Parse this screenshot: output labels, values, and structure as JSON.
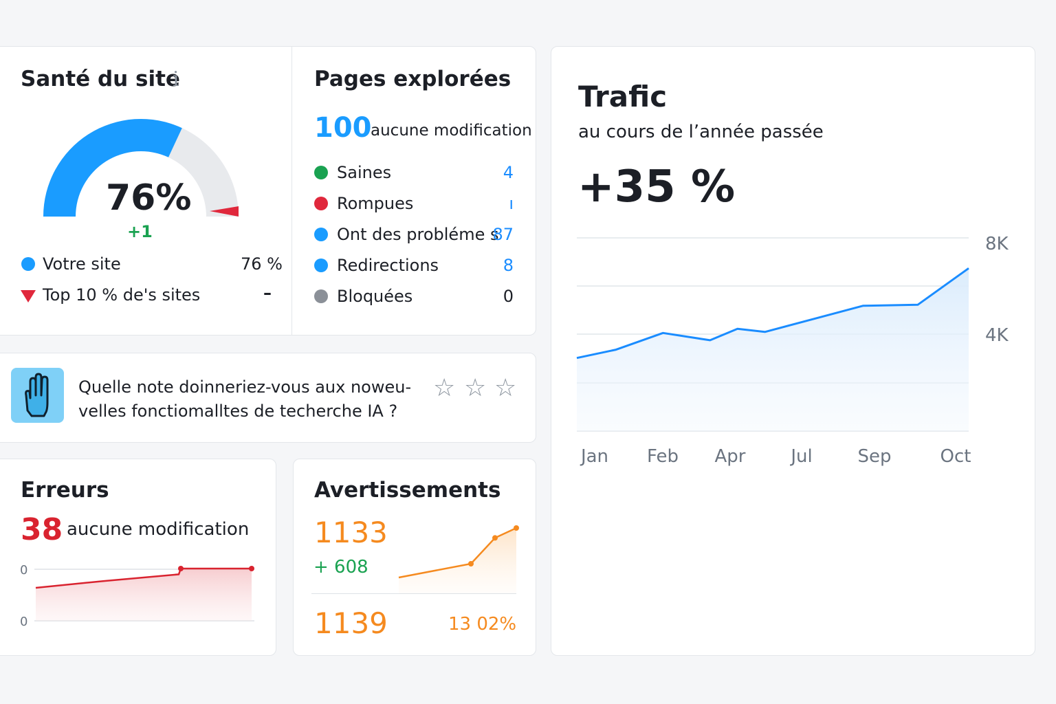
{
  "site_health": {
    "title": "Santé du site",
    "info_icon": "i",
    "percent_text": "76%",
    "percent_value": 76,
    "delta": "+1",
    "legend": [
      {
        "label": "Votre site",
        "value": "76 %",
        "color": "#1a9cff"
      },
      {
        "label": "Top 10 % de's sites",
        "value": "–",
        "color": "#e0283c"
      }
    ]
  },
  "pages": {
    "title": "Pages explorées",
    "count": "100",
    "change": "aucune modification",
    "rows": [
      {
        "label": "Saines",
        "value": "4",
        "color": "#1aa251"
      },
      {
        "label": "Rompues",
        "value": "ı",
        "color": "#e0283c"
      },
      {
        "label": "Ont des probléme s",
        "value": "87",
        "color": "#1a9cff"
      },
      {
        "label": "Redirections",
        "value": "8",
        "color": "#1a9cff"
      },
      {
        "label": "Bloquées",
        "value": "0",
        "color": "#8b9098",
        "value_color": "#1c1f26"
      }
    ]
  },
  "feedback": {
    "line1": "Quelle note doinneriez-vous aux noweu-",
    "line2": "velles fonctiomalltes de techerche IA ?",
    "icon": "hand-icon",
    "stars": 3
  },
  "errors": {
    "title": "Erreurs",
    "count": "38",
    "change": "aucune modification",
    "y_ticks": [
      "0",
      "0"
    ],
    "color": "#d9232f",
    "values": [
      0.0,
      0.35,
      0.7,
      1.0,
      1.0
    ]
  },
  "warnings": {
    "title": "Avertissements",
    "count": "1133",
    "delta": "+ 608",
    "count2": "113",
    "count2_suffix": "9",
    "percent": "13 02%",
    "color": "#f58a1f",
    "values": [
      0.0,
      0.25,
      0.8,
      1.0
    ]
  },
  "traffic": {
    "title": "Trafic",
    "subtitle": "au cours de l’année passée",
    "change": "+35 %"
  },
  "chart_data": {
    "type": "area",
    "title": "Trafic",
    "categories": [
      "Jan",
      "Feb",
      "Apr",
      "Jul",
      "Sep",
      "Oct"
    ],
    "y_ticks": [
      "8K",
      "4K"
    ],
    "ylim": [
      0,
      9000
    ],
    "series": [
      {
        "x": [
          0,
          0.1,
          0.22,
          0.34,
          0.41,
          0.48,
          0.61,
          0.73,
          0.87,
          1.0
        ],
        "values": [
          3500,
          3900,
          4700,
          4350,
          4900,
          4750,
          5400,
          6000,
          6050,
          7800
        ]
      }
    ],
    "color": "#1a8cff",
    "grid": true
  }
}
